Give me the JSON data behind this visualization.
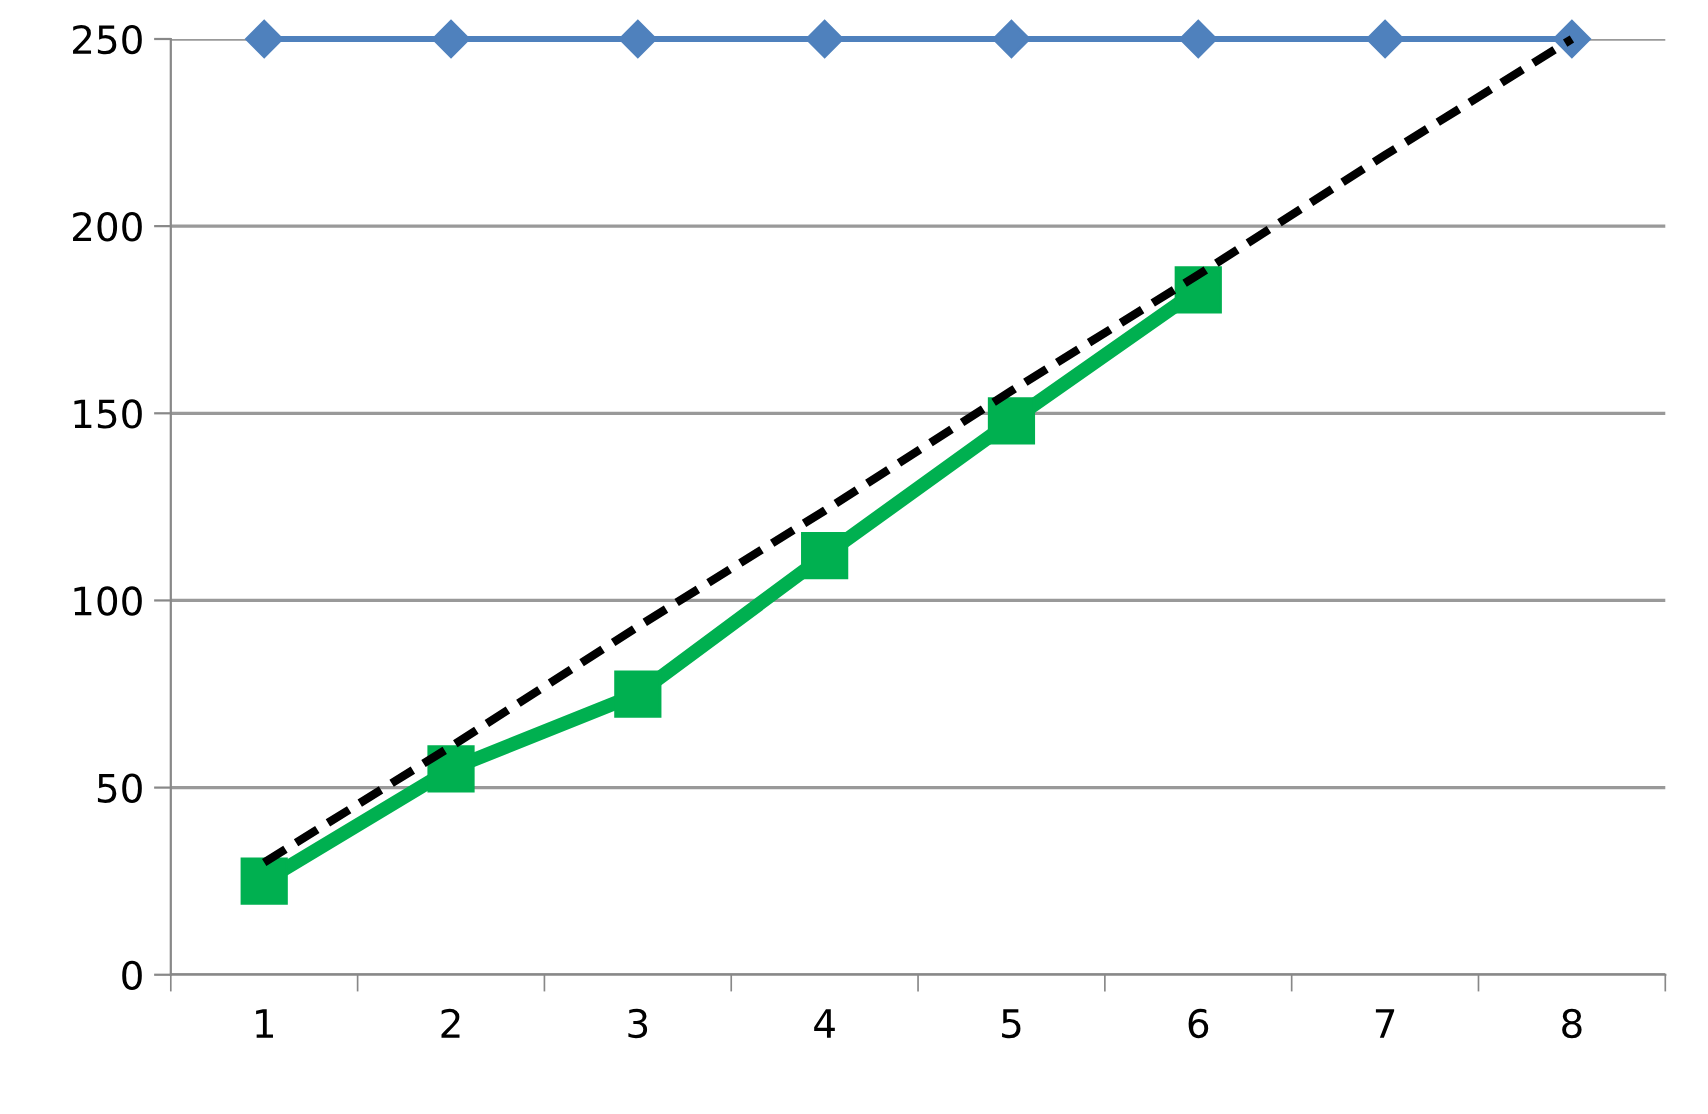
{
  "chart_data": {
    "type": "line",
    "categories": [
      "1",
      "2",
      "3",
      "4",
      "5",
      "6",
      "7",
      "8"
    ],
    "series": [
      {
        "color": "#4f81bd",
        "marker": "diamond",
        "line_style": "solid",
        "values": [
          250,
          250,
          250,
          250,
          250,
          250,
          250,
          250
        ]
      },
      {
        "color": "#00b050",
        "marker": "square",
        "line_style": "solid",
        "values": [
          25,
          55,
          75,
          112,
          148,
          183,
          null,
          null
        ]
      },
      {
        "color": "#000000",
        "marker": "none",
        "line_style": "dashed",
        "values": [
          30,
          61,
          93,
          124,
          156,
          187,
          219,
          250
        ]
      }
    ],
    "ylim": [
      0,
      250
    ],
    "yticks": [
      0,
      50,
      100,
      150,
      200,
      250
    ],
    "grid": "y"
  }
}
